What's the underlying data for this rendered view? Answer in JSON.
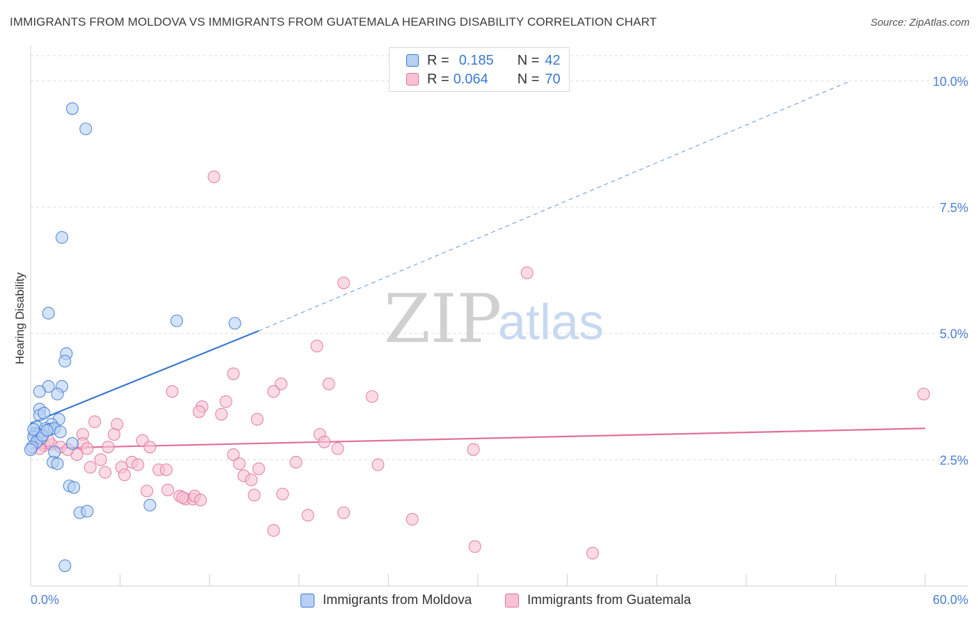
{
  "title": "IMMIGRANTS FROM MOLDOVA VS IMMIGRANTS FROM GUATEMALA HEARING DISABILITY CORRELATION CHART",
  "source": "Source: ZipAtlas.com",
  "watermark": {
    "zip": "ZIP",
    "atlas": "atlas"
  },
  "colors": {
    "moldova": "#3a78d0",
    "moldova_fill": "#b7d0f3",
    "guatemala": "#e0709a",
    "guatemala_fill": "#f7c3d4"
  },
  "legend": {
    "moldova": {
      "r_label": "R =",
      "r_value": "0.185",
      "n_label": "N =",
      "n_value": "42"
    },
    "guatemala": {
      "r_label": "R =",
      "r_value": "0.064",
      "n_label": "N =",
      "n_value": "70"
    }
  },
  "bottom_legend": {
    "moldova": "Immigrants from Moldova",
    "guatemala": "Immigrants from Guatemala"
  },
  "chart_data": {
    "type": "scatter",
    "title": "IMMIGRANTS FROM MOLDOVA VS IMMIGRANTS FROM GUATEMALA HEARING DISABILITY CORRELATION CHART",
    "xlabel": "",
    "ylabel": "Hearing Disability",
    "xlim": [
      0,
      60
    ],
    "ylim": [
      0,
      10.5
    ],
    "x_tick_labels": {
      "min": "0.0%",
      "max": "60.0%"
    },
    "y_ticks": [
      {
        "value": 2.5,
        "label": "2.5%"
      },
      {
        "value": 5.0,
        "label": "5.0%"
      },
      {
        "value": 7.5,
        "label": "7.5%"
      },
      {
        "value": 10.0,
        "label": "10.0%"
      }
    ],
    "x_minor_ticks": [
      0,
      6,
      12,
      18,
      24,
      30,
      36,
      42,
      48,
      54,
      60
    ],
    "series": [
      {
        "name": "Immigrants from Moldova",
        "r": 0.185,
        "n": 42,
        "trend": {
          "x0": 0,
          "y0": 3.22,
          "x1": 15.3,
          "y1": 5.05,
          "dash_x1": 55,
          "dash_y1": 10.0
        },
        "points": [
          [
            2.8,
            9.45
          ],
          [
            3.7,
            9.05
          ],
          [
            2.1,
            6.9
          ],
          [
            1.2,
            5.4
          ],
          [
            9.8,
            5.25
          ],
          [
            13.7,
            5.2
          ],
          [
            2.4,
            4.6
          ],
          [
            2.3,
            4.45
          ],
          [
            1.2,
            3.95
          ],
          [
            2.1,
            3.95
          ],
          [
            0.6,
            3.85
          ],
          [
            1.8,
            3.8
          ],
          [
            0.6,
            3.5
          ],
          [
            0.6,
            3.38
          ],
          [
            0.9,
            3.42
          ],
          [
            1.9,
            3.3
          ],
          [
            1.4,
            3.2
          ],
          [
            0.4,
            3.15
          ],
          [
            1.0,
            3.12
          ],
          [
            1.3,
            3.1
          ],
          [
            1.6,
            3.12
          ],
          [
            2.0,
            3.05
          ],
          [
            0.3,
            3.02
          ],
          [
            0.5,
            3.0
          ],
          [
            0.2,
            2.95
          ],
          [
            0.7,
            2.92
          ],
          [
            0.4,
            2.85
          ],
          [
            0.1,
            2.75
          ],
          [
            0.0,
            2.7
          ],
          [
            2.8,
            2.82
          ],
          [
            1.6,
            2.65
          ],
          [
            1.5,
            2.45
          ],
          [
            1.8,
            2.42
          ],
          [
            2.6,
            1.98
          ],
          [
            2.9,
            1.95
          ],
          [
            8.0,
            1.6
          ],
          [
            3.3,
            1.45
          ],
          [
            3.8,
            1.48
          ],
          [
            2.3,
            0.4
          ],
          [
            0.8,
            2.98
          ],
          [
            1.1,
            3.08
          ],
          [
            0.2,
            3.1
          ]
        ]
      },
      {
        "name": "Immigrants from Guatemala",
        "r": 0.064,
        "n": 70,
        "trend": {
          "x0": 0,
          "y0": 2.72,
          "x1": 60,
          "y1": 3.12
        },
        "points": [
          [
            12.3,
            8.1
          ],
          [
            33.3,
            6.2
          ],
          [
            21.0,
            6.0
          ],
          [
            19.2,
            4.75
          ],
          [
            13.6,
            4.2
          ],
          [
            20.0,
            4.0
          ],
          [
            16.8,
            4.0
          ],
          [
            16.3,
            3.85
          ],
          [
            9.5,
            3.85
          ],
          [
            22.9,
            3.75
          ],
          [
            59.9,
            3.8
          ],
          [
            13.1,
            3.65
          ],
          [
            11.5,
            3.55
          ],
          [
            11.3,
            3.45
          ],
          [
            12.8,
            3.4
          ],
          [
            15.2,
            3.3
          ],
          [
            4.3,
            3.25
          ],
          [
            5.8,
            3.2
          ],
          [
            5.6,
            3.0
          ],
          [
            3.5,
            3.0
          ],
          [
            19.4,
            3.0
          ],
          [
            19.7,
            2.85
          ],
          [
            7.5,
            2.88
          ],
          [
            0.5,
            2.85
          ],
          [
            0.9,
            2.78
          ],
          [
            1.4,
            2.8
          ],
          [
            3.5,
            2.82
          ],
          [
            5.2,
            2.75
          ],
          [
            8.0,
            2.75
          ],
          [
            3.8,
            2.72
          ],
          [
            0.6,
            2.72
          ],
          [
            2.0,
            2.75
          ],
          [
            20.6,
            2.72
          ],
          [
            29.7,
            2.7
          ],
          [
            13.6,
            2.6
          ],
          [
            3.1,
            2.6
          ],
          [
            4.7,
            2.5
          ],
          [
            6.8,
            2.45
          ],
          [
            7.2,
            2.4
          ],
          [
            14.0,
            2.42
          ],
          [
            17.8,
            2.45
          ],
          [
            23.3,
            2.4
          ],
          [
            4.0,
            2.35
          ],
          [
            6.1,
            2.35
          ],
          [
            8.6,
            2.3
          ],
          [
            9.1,
            2.3
          ],
          [
            15.3,
            2.32
          ],
          [
            5.0,
            2.25
          ],
          [
            6.3,
            2.2
          ],
          [
            14.3,
            2.18
          ],
          [
            14.8,
            2.1
          ],
          [
            7.8,
            1.88
          ],
          [
            9.2,
            1.9
          ],
          [
            10.0,
            1.78
          ],
          [
            10.4,
            1.72
          ],
          [
            10.9,
            1.72
          ],
          [
            11.0,
            1.78
          ],
          [
            11.4,
            1.7
          ],
          [
            15.0,
            1.8
          ],
          [
            16.9,
            1.82
          ],
          [
            10.2,
            1.75
          ],
          [
            18.6,
            1.4
          ],
          [
            21.0,
            1.45
          ],
          [
            25.6,
            1.32
          ],
          [
            16.3,
            1.1
          ],
          [
            29.8,
            0.78
          ],
          [
            37.7,
            0.65
          ],
          [
            2.5,
            2.7
          ],
          [
            0.8,
            2.98
          ],
          [
            1.2,
            2.88
          ]
        ]
      }
    ]
  }
}
